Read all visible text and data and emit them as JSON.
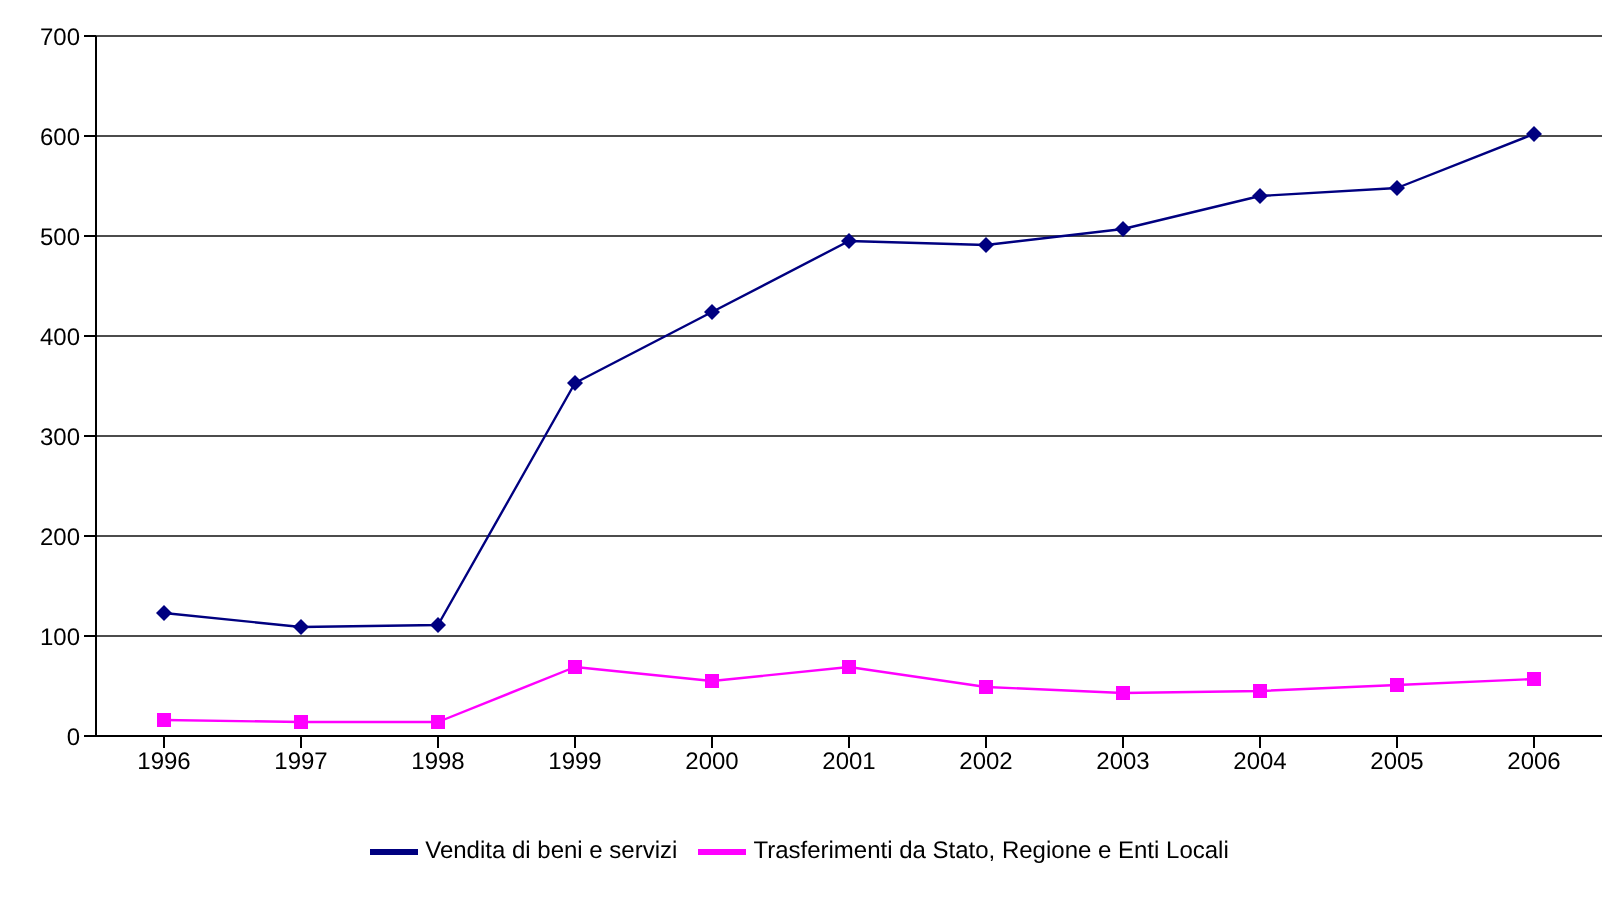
{
  "chart_data": {
    "type": "line",
    "categories": [
      "1996",
      "1997",
      "1998",
      "1999",
      "2000",
      "2001",
      "2002",
      "2003",
      "2004",
      "2005",
      "2006"
    ],
    "series": [
      {
        "name": "Vendita di beni e servizi",
        "color": "#000080",
        "marker": "diamond",
        "values": [
          123,
          109,
          111,
          353,
          424,
          495,
          491,
          507,
          540,
          548,
          602
        ]
      },
      {
        "name": "Trasferimenti da Stato, Regione e Enti Locali",
        "color": "#ff00ff",
        "marker": "square",
        "values": [
          16,
          14,
          14,
          69,
          55,
          69,
          49,
          43,
          45,
          51,
          57
        ]
      }
    ],
    "ylim": [
      0,
      700
    ],
    "yticks": [
      0,
      100,
      200,
      300,
      400,
      500,
      600,
      700
    ],
    "grid": "y",
    "legend": "bottom"
  }
}
